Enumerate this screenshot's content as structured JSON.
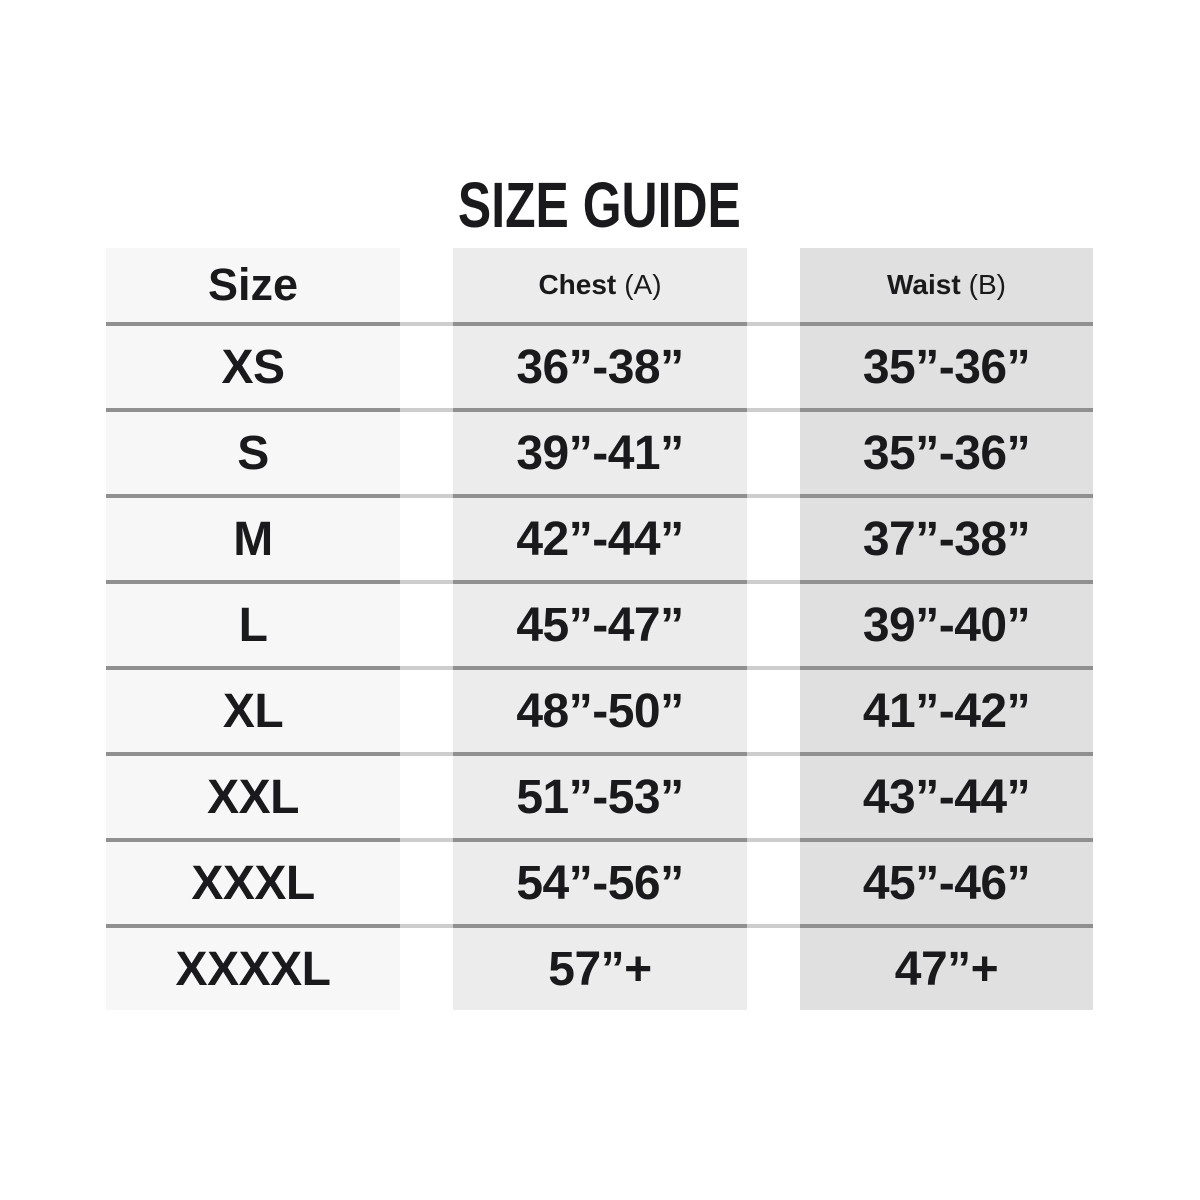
{
  "title": "SIZE GUIDE",
  "table": {
    "headers": {
      "size": "Size",
      "chest_label": "Chest",
      "chest_suffix": "(A)",
      "waist_label": "Waist",
      "waist_suffix": "(B)"
    },
    "rows": [
      {
        "size": "XS",
        "chest": "36”-38”",
        "waist": "35”-36”"
      },
      {
        "size": "S",
        "chest": "39”-41”",
        "waist": "35”-36”"
      },
      {
        "size": "M",
        "chest": "42”-44”",
        "waist": "37”-38”"
      },
      {
        "size": "L",
        "chest": "45”-47”",
        "waist": "39”-40”"
      },
      {
        "size": "XL",
        "chest": "48”-50”",
        "waist": "41”-42”"
      },
      {
        "size": "XXL",
        "chest": "51”-53”",
        "waist": "43”-44”"
      },
      {
        "size": "XXXL",
        "chest": "54”-56”",
        "waist": "45”-46”"
      },
      {
        "size": "XXXXL",
        "chest": "57”+",
        "waist": "47”+"
      }
    ]
  },
  "chart_data": {
    "type": "table",
    "title": "SIZE GUIDE",
    "columns": [
      "Size",
      "Chest (A)",
      "Waist (B)"
    ],
    "rows": [
      [
        "XS",
        "36”-38”",
        "35”-36”"
      ],
      [
        "S",
        "39”-41”",
        "35”-36”"
      ],
      [
        "M",
        "42”-44”",
        "37”-38”"
      ],
      [
        "L",
        "45”-47”",
        "39”-40”"
      ],
      [
        "XL",
        "48”-50”",
        "41”-42”"
      ],
      [
        "XXL",
        "51”-53”",
        "43”-44”"
      ],
      [
        "XXXL",
        "54”-56”",
        "45”-46”"
      ],
      [
        "XXXXL",
        "57”+",
        "47”+"
      ]
    ],
    "legend_position": "none",
    "grid": "horizontal-dividers"
  },
  "colors": {
    "column1_bg": "#f7f7f7",
    "column2_bg": "#ececec",
    "column3_bg": "#e0e0e0",
    "divider": "#909090",
    "divider_gap": "#cdcdcd",
    "text": "#1a1a1c",
    "page_bg": "#ffffff"
  }
}
